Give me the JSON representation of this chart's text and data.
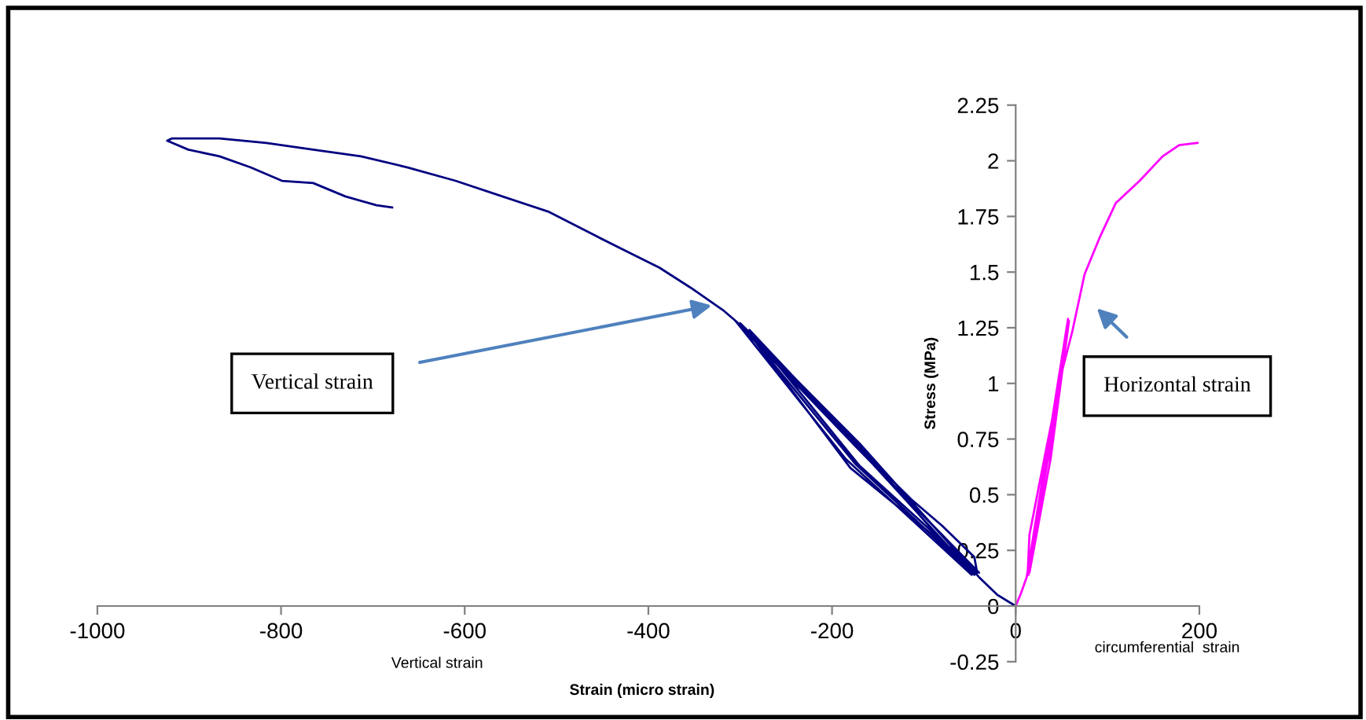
{
  "chart_data": {
    "type": "line",
    "xlabel": "Strain (micro strain)",
    "ylabel": "Stress (MPa)",
    "xlim": [
      -1000,
      200
    ],
    "ylim": [
      -0.25,
      2.25
    ],
    "xticks": [
      -1000,
      -800,
      -600,
      -400,
      -200,
      0,
      200
    ],
    "yticks": [
      -0.25,
      0,
      0.25,
      0.5,
      0.75,
      1,
      1.25,
      1.5,
      1.75,
      2,
      2.25
    ],
    "grid": false,
    "legend": false,
    "marker": "none",
    "line_style": "solid",
    "series": [
      {
        "color": "#000080",
        "x": [
          0,
          -20,
          -40,
          -170,
          -300,
          -175,
          -45,
          -165,
          -295,
          -180,
          -40,
          -175,
          -305,
          -185,
          -48,
          -160,
          -290,
          -170,
          -42,
          -45,
          -80,
          -114,
          -148,
          -182,
          -217,
          -251,
          -285,
          -319,
          -354,
          -388,
          -422,
          -456,
          -508,
          -559,
          -610,
          -662,
          -713,
          -765,
          -816,
          -867,
          -919,
          -924,
          -901,
          -867,
          -833,
          -799,
          -765,
          -730,
          -696,
          -679
        ],
        "values": [
          0,
          0.05,
          0.13,
          0.73,
          1.27,
          0.64,
          0.14,
          0.68,
          1.25,
          0.62,
          0.15,
          0.72,
          1.28,
          0.66,
          0.14,
          0.67,
          1.24,
          0.63,
          0.15,
          0.22,
          0.36,
          0.48,
          0.62,
          0.78,
          0.92,
          1.06,
          1.21,
          1.33,
          1.43,
          1.52,
          1.59,
          1.66,
          1.77,
          1.84,
          1.91,
          1.97,
          2.02,
          2.05,
          2.08,
          2.1,
          2.1,
          2.09,
          2.05,
          2.02,
          1.97,
          1.91,
          1.9,
          1.84,
          1.8,
          1.79
        ]
      },
      {
        "color": "#ff00ff",
        "x": [
          0,
          6,
          12,
          35,
          58,
          38,
          14,
          36,
          56,
          37,
          15,
          34,
          57,
          36,
          13,
          15,
          32,
          49,
          62,
          75,
          92,
          109,
          135,
          160,
          178,
          198
        ],
        "values": [
          0,
          0.06,
          0.13,
          0.72,
          1.28,
          0.66,
          0.14,
          0.7,
          1.26,
          0.64,
          0.15,
          0.69,
          1.29,
          0.68,
          0.14,
          0.32,
          0.68,
          1.03,
          1.24,
          1.49,
          1.66,
          1.81,
          1.91,
          2.02,
          2.07,
          2.08
        ]
      }
    ],
    "annotations": [
      "Vertical strain",
      "Horizontal strain",
      "Vertical strain",
      "circumferential  strain"
    ]
  }
}
